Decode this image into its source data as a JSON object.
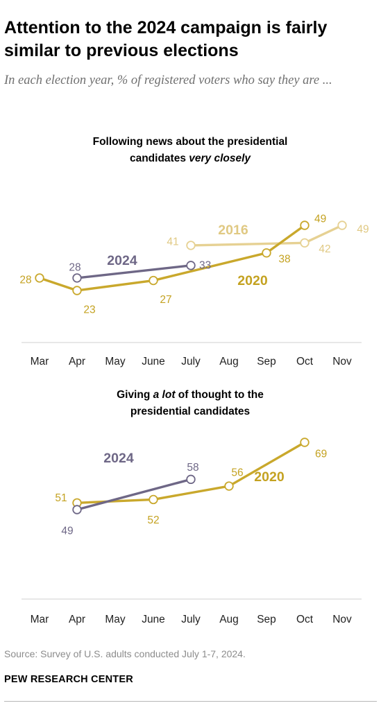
{
  "header": {
    "title": "Attention to the 2024 campaign is fairly similar to previous elections",
    "subtitle": "In each election year, % of registered voters who say they are ..."
  },
  "footer": {
    "source": "Source: Survey of U.S. adults conducted July 1-7, 2024.",
    "brand": "PEW RESEARCH CENTER"
  },
  "colors": {
    "2024": "#6e6786",
    "2020": "#c9a82c",
    "2016": "#e6d193",
    "2020_label": "#c4a221",
    "2016_label": "#e0c983",
    "axis_line": "#cfcfcf",
    "tick_text": "#222222"
  },
  "chart_data": [
    {
      "type": "line",
      "title_parts": [
        "Following news about the presidential",
        "candidates ",
        "very closely"
      ],
      "categories": [
        "Mar",
        "Apr",
        "May",
        "June",
        "July",
        "Aug",
        "Sep",
        "Oct",
        "Nov"
      ],
      "ylim": [
        20,
        52
      ],
      "grid": false,
      "series": [
        {
          "name": "2024",
          "points": [
            {
              "x": "Apr",
              "y": 28
            },
            {
              "x": "July",
              "y": 33
            }
          ]
        },
        {
          "name": "2020",
          "points": [
            {
              "x": "Mar",
              "y": 28
            },
            {
              "x": "Apr",
              "y": 23
            },
            {
              "x": "June",
              "y": 27
            },
            {
              "x": "Sep",
              "y": 38
            },
            {
              "x": "Oct",
              "y": 49
            }
          ]
        },
        {
          "name": "2016",
          "points": [
            {
              "x": "July",
              "y": 41
            },
            {
              "x": "Oct",
              "y": 42
            },
            {
              "x": "Nov",
              "y": 49
            }
          ]
        }
      ]
    },
    {
      "type": "line",
      "title_parts": [
        "Giving ",
        "a lot",
        " of thought to the",
        "presidential candidates"
      ],
      "categories": [
        "Mar",
        "Apr",
        "May",
        "June",
        "July",
        "Aug",
        "Sep",
        "Oct",
        "Nov"
      ],
      "ylim": [
        40,
        75
      ],
      "grid": false,
      "series": [
        {
          "name": "2024",
          "points": [
            {
              "x": "Apr",
              "y": 49
            },
            {
              "x": "July",
              "y": 58
            }
          ]
        },
        {
          "name": "2020",
          "points": [
            {
              "x": "Apr",
              "y": 51
            },
            {
              "x": "June",
              "y": 52
            },
            {
              "x": "Aug",
              "y": 56
            },
            {
              "x": "Oct",
              "y": 69
            }
          ]
        }
      ]
    }
  ]
}
